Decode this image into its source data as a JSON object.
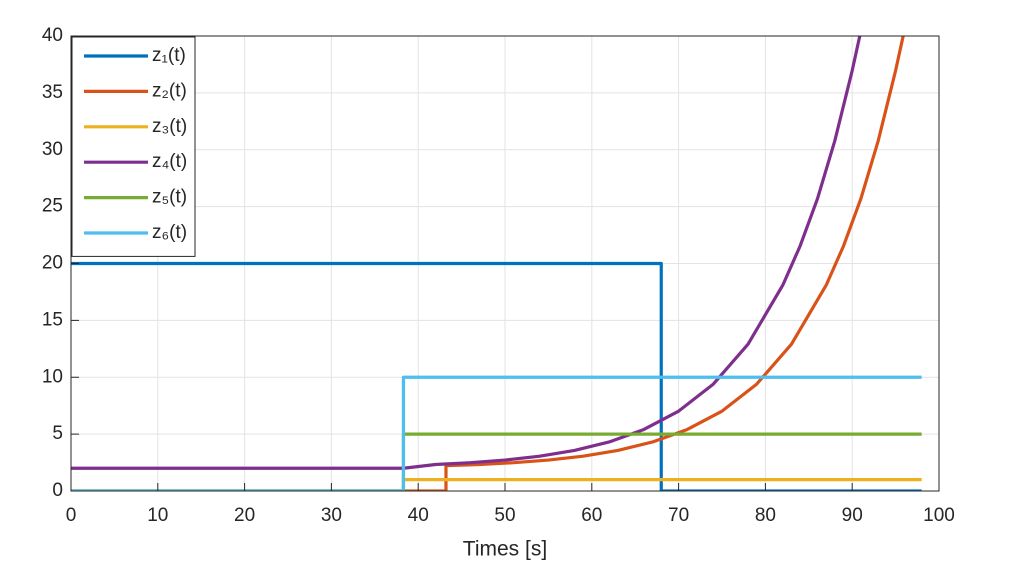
{
  "chart_data": {
    "type": "line",
    "xlabel": "Times [s]",
    "xlim": [
      0,
      100
    ],
    "xticks": [
      0,
      10,
      20,
      30,
      40,
      50,
      60,
      70,
      80,
      90,
      100
    ],
    "ylim": [
      0,
      40
    ],
    "yticks": [
      0,
      5,
      10,
      15,
      20,
      25,
      30,
      35,
      40
    ],
    "grid": true,
    "legend": "upper-left",
    "series": [
      {
        "name": "z₁(t)",
        "color": "#0072BD",
        "x": [
          0,
          68,
          68,
          98
        ],
        "values": [
          20,
          20,
          0,
          0
        ]
      },
      {
        "name": "z₂(t)",
        "color": "#D95319",
        "x": [
          0,
          43.2,
          43.2,
          47,
          51,
          55,
          59,
          63,
          67,
          71,
          75,
          79,
          83,
          87,
          89,
          91,
          93,
          95,
          95.9
        ],
        "values": [
          0,
          0,
          2.23,
          2.33,
          2.49,
          2.72,
          3.06,
          3.57,
          4.31,
          5.41,
          7.02,
          9.4,
          12.91,
          18.09,
          21.54,
          25.7,
          30.8,
          36.96,
          40.1
        ]
      },
      {
        "name": "z₃(t)",
        "color": "#EDB120",
        "x": [
          0,
          38.3,
          38.3,
          98
        ],
        "values": [
          0,
          0,
          1,
          1
        ]
      },
      {
        "name": "z₄(t)",
        "color": "#7E2F8E",
        "x": [
          0,
          38.3,
          42,
          46,
          50,
          54,
          58,
          62,
          66,
          70,
          74,
          78,
          82,
          84,
          86,
          88,
          90,
          90.9
        ],
        "values": [
          2,
          2,
          2.33,
          2.49,
          2.72,
          3.06,
          3.57,
          4.31,
          5.41,
          7.02,
          9.4,
          12.91,
          18.09,
          21.54,
          25.7,
          30.8,
          36.96,
          40.1
        ]
      },
      {
        "name": "z₅(t)",
        "color": "#77AC30",
        "x": [
          0,
          38.3,
          38.3,
          98
        ],
        "values": [
          0,
          0,
          5,
          5
        ]
      },
      {
        "name": "z₆(t)",
        "color": "#4DBEEE",
        "x": [
          0,
          38.3,
          38.3,
          98
        ],
        "values": [
          0,
          0,
          10,
          10
        ]
      }
    ]
  }
}
